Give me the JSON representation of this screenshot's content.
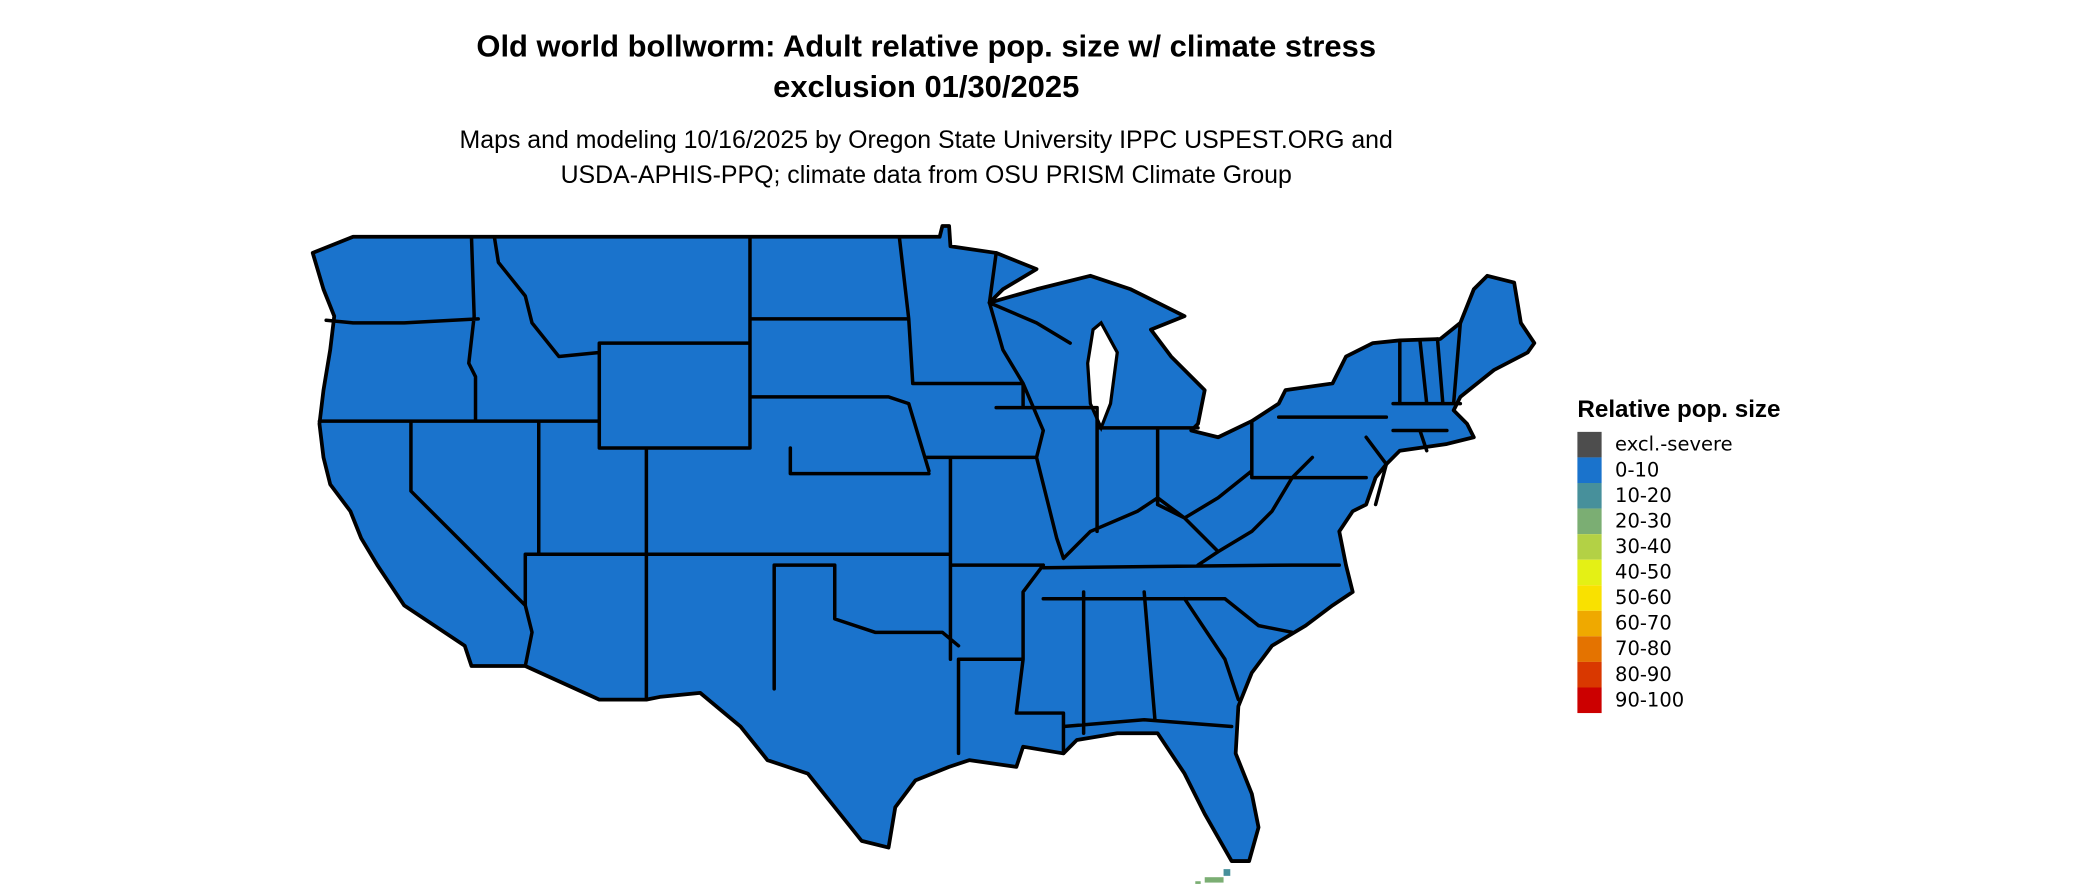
{
  "header": {
    "title_line1": "Old world bollworm: Adult relative pop. size w/ climate stress",
    "title_line2": "exclusion 01/30/2025",
    "subtitle_line1": "Maps and modeling 10/16/2025 by Oregon State University IPPC USPEST.ORG and",
    "subtitle_line2": "USDA-APHIS-PPQ; climate data from OSU PRISM Climate Group"
  },
  "map": {
    "region": "Contiguous United States",
    "predominant_class": "0-10",
    "fill_color": "#1a73cc",
    "minor_areas": [
      {
        "area": "Florida Keys",
        "class": "20-30"
      },
      {
        "area": "South Florida coast",
        "class": "10-20"
      }
    ]
  },
  "legend": {
    "title": "Relative pop. size",
    "items": [
      {
        "label": "excl.-severe",
        "color": "#4d4d4d"
      },
      {
        "label": "0-10",
        "color": "#1a73cc"
      },
      {
        "label": "10-20",
        "color": "#47909b"
      },
      {
        "label": "20-30",
        "color": "#7bae73"
      },
      {
        "label": "30-40",
        "color": "#b3d145"
      },
      {
        "label": "40-50",
        "color": "#e4f015"
      },
      {
        "label": "50-60",
        "color": "#f9e100"
      },
      {
        "label": "60-70",
        "color": "#efa900"
      },
      {
        "label": "70-80",
        "color": "#e47300"
      },
      {
        "label": "80-90",
        "color": "#d93800"
      },
      {
        "label": "90-100",
        "color": "#cc0000"
      }
    ]
  }
}
